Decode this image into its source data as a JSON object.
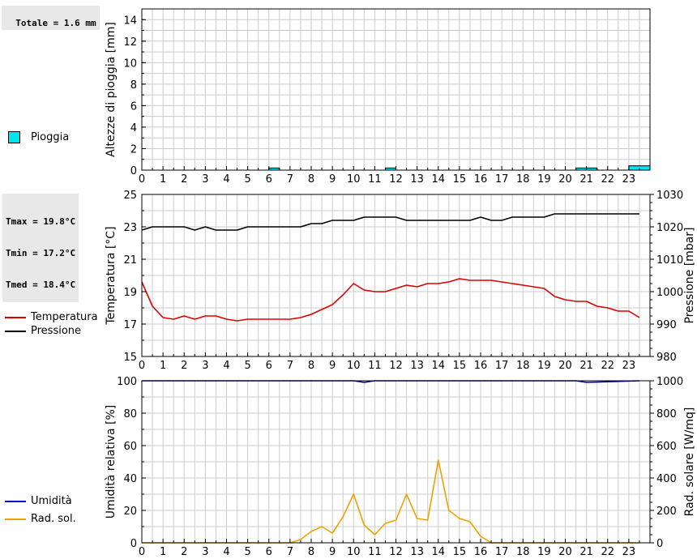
{
  "rain_total": "Totale = 1.6 mm",
  "temp_stats": [
    "Tmax = 19.8°C",
    "Tmin = 17.2°C",
    "Tmed = 18.4°C"
  ],
  "colors": {
    "rain": "#00e5ee",
    "temperature": "#dd0000",
    "pressure": "#000000",
    "humidity": "#0000cc",
    "solar": "#f0a000",
    "grid": "#cccccc"
  },
  "chart_data": [
    {
      "type": "bar",
      "ylabel": "Altezze di pioggia [mm]",
      "ylim": [
        0,
        15
      ],
      "yticks": [
        0,
        2,
        4,
        6,
        8,
        10,
        12,
        14
      ],
      "xlim": [
        0,
        24
      ],
      "xticks": [
        0,
        1,
        2,
        3,
        4,
        5,
        6,
        7,
        8,
        9,
        10,
        11,
        12,
        13,
        14,
        15,
        16,
        17,
        18,
        19,
        20,
        21,
        22,
        23
      ],
      "grid": true,
      "legend": [
        {
          "name": "Pioggia",
          "color": "#00e5ee"
        }
      ],
      "bars": [
        {
          "x0": 6.0,
          "x1": 6.5,
          "value": 0.2
        },
        {
          "x0": 11.5,
          "x1": 12.0,
          "value": 0.2
        },
        {
          "x0": 20.5,
          "x1": 21.5,
          "value": 0.2
        },
        {
          "x0": 23.0,
          "x1": 24.0,
          "value": 0.4
        }
      ]
    },
    {
      "type": "line",
      "ylabel": "Temperatura [°C]",
      "y2label": "Pressione [mbar]",
      "ylim": [
        15,
        25
      ],
      "yticks": [
        15,
        17,
        19,
        21,
        23,
        25
      ],
      "y2lim": [
        980,
        1030
      ],
      "y2ticks": [
        980,
        990,
        1000,
        1010,
        1020,
        1030
      ],
      "xlim": [
        0,
        24
      ],
      "xticks": [
        0,
        1,
        2,
        3,
        4,
        5,
        6,
        7,
        8,
        9,
        10,
        11,
        12,
        13,
        14,
        15,
        16,
        17,
        18,
        19,
        20,
        21,
        22,
        23
      ],
      "grid": true,
      "legend": [
        {
          "name": "Temperatura",
          "color": "#dd0000"
        },
        {
          "name": "Pressione",
          "color": "#000000"
        }
      ],
      "series": [
        {
          "name": "Temperatura",
          "axis": "left",
          "x": [
            0,
            0.5,
            1,
            1.5,
            2,
            2.5,
            3,
            3.5,
            4,
            4.5,
            5,
            5.5,
            6,
            6.5,
            7,
            7.5,
            8,
            8.5,
            9,
            9.5,
            10,
            10.5,
            11,
            11.5,
            12,
            12.5,
            13,
            13.5,
            14,
            14.5,
            15,
            15.5,
            16,
            16.5,
            17,
            17.5,
            18,
            18.5,
            19,
            19.5,
            20,
            20.5,
            21,
            21.5,
            22,
            22.5,
            23,
            23.5
          ],
          "values": [
            19.6,
            18.1,
            17.4,
            17.3,
            17.5,
            17.3,
            17.5,
            17.5,
            17.3,
            17.2,
            17.3,
            17.3,
            17.3,
            17.3,
            17.3,
            17.4,
            17.6,
            17.9,
            18.2,
            18.8,
            19.5,
            19.1,
            19.0,
            19.0,
            19.2,
            19.4,
            19.3,
            19.5,
            19.5,
            19.6,
            19.8,
            19.7,
            19.7,
            19.7,
            19.6,
            19.5,
            19.4,
            19.3,
            19.2,
            18.7,
            18.5,
            18.4,
            18.4,
            18.1,
            18.0,
            17.8,
            17.8,
            17.4
          ]
        },
        {
          "name": "Pressione",
          "axis": "right",
          "x": [
            0,
            0.5,
            1,
            1.5,
            2,
            2.5,
            3,
            3.5,
            4,
            4.5,
            5,
            5.5,
            6,
            6.5,
            7,
            7.5,
            8,
            8.5,
            9,
            9.5,
            10,
            10.5,
            11,
            11.5,
            12,
            12.5,
            13,
            13.5,
            14,
            14.5,
            15,
            15.5,
            16,
            16.5,
            17,
            17.5,
            18,
            18.5,
            19,
            19.5,
            20,
            20.5,
            21,
            21.5,
            22,
            22.5,
            23,
            23.5
          ],
          "values": [
            1019,
            1020,
            1020,
            1020,
            1020,
            1019,
            1020,
            1019,
            1019,
            1019,
            1020,
            1020,
            1020,
            1020,
            1020,
            1020,
            1021,
            1021,
            1022,
            1022,
            1022,
            1023,
            1023,
            1023,
            1023,
            1022,
            1022,
            1022,
            1022,
            1022,
            1022,
            1022,
            1023,
            1022,
            1022,
            1023,
            1023,
            1023,
            1023,
            1024,
            1024,
            1024,
            1024,
            1024,
            1024,
            1024,
            1024,
            1024
          ]
        }
      ]
    },
    {
      "type": "line",
      "ylabel": "Umidità relativa [%]",
      "y2label": "Rad. solare [W/mq]",
      "ylim": [
        0,
        100
      ],
      "yticks": [
        0,
        20,
        40,
        60,
        80,
        100
      ],
      "y2lim": [
        0,
        1000
      ],
      "y2ticks": [
        0,
        200,
        400,
        600,
        800,
        1000
      ],
      "xlim": [
        0,
        24
      ],
      "xticks": [
        0,
        1,
        2,
        3,
        4,
        5,
        6,
        7,
        8,
        9,
        10,
        11,
        12,
        13,
        14,
        15,
        16,
        17,
        18,
        19,
        20,
        21,
        22,
        23
      ],
      "grid": true,
      "legend": [
        {
          "name": "Umidità",
          "color": "#0000cc"
        },
        {
          "name": "Rad. sol.",
          "color": "#f0a000"
        }
      ],
      "series": [
        {
          "name": "Umidità",
          "axis": "left",
          "x": [
            0,
            10,
            10.5,
            11,
            20.5,
            21,
            23.5
          ],
          "values": [
            100,
            100,
            99,
            100,
            100,
            99,
            100
          ]
        },
        {
          "name": "Rad. sol.",
          "axis": "right",
          "x": [
            0,
            0.5,
            1,
            1.5,
            2,
            2.5,
            3,
            3.5,
            4,
            4.5,
            5,
            5.5,
            6,
            6.5,
            7,
            7.5,
            8,
            8.5,
            9,
            9.5,
            10,
            10.5,
            11,
            11.5,
            12,
            12.5,
            13,
            13.5,
            14,
            14.5,
            15,
            15.5,
            16,
            16.5,
            17,
            17.5,
            18,
            18.5,
            19,
            19.5,
            20,
            20.5,
            21,
            21.5,
            22,
            22.5,
            23,
            23.5
          ],
          "values": [
            0,
            0,
            0,
            0,
            0,
            0,
            0,
            0,
            0,
            0,
            0,
            0,
            0,
            0,
            0,
            20,
            70,
            100,
            60,
            160,
            300,
            110,
            50,
            120,
            140,
            300,
            150,
            140,
            510,
            200,
            150,
            130,
            40,
            0,
            0,
            0,
            0,
            0,
            0,
            0,
            0,
            0,
            0,
            0,
            0,
            0,
            0,
            0
          ]
        }
      ]
    }
  ]
}
